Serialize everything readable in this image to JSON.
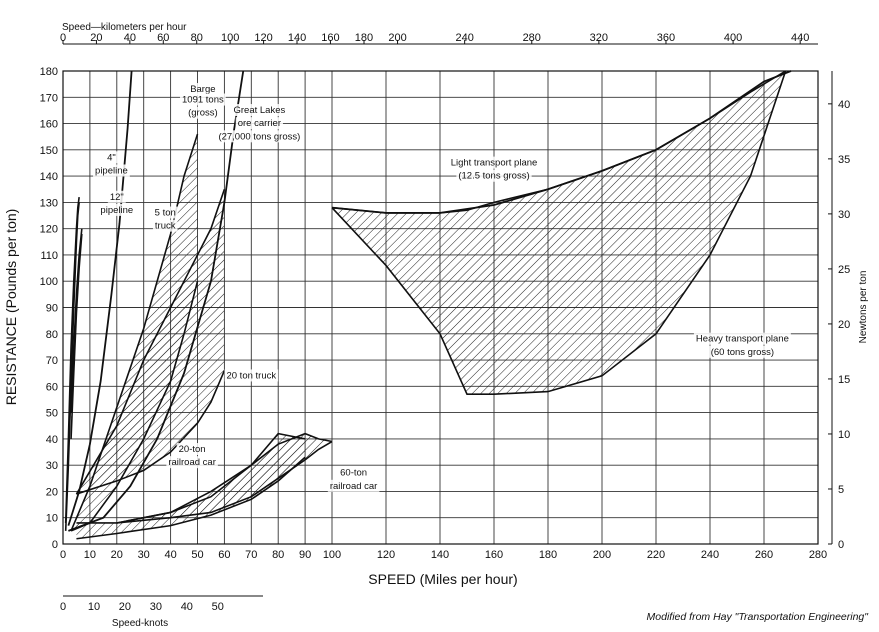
{
  "chart_data": {
    "type": "area",
    "xlabel": "SPEED  (Miles per hour)",
    "ylabel": "RESISTANCE  (Pounds per ton)",
    "xlim": [
      0,
      280
    ],
    "ylim": [
      0,
      180
    ],
    "x_ticks": [
      0,
      10,
      20,
      30,
      40,
      50,
      60,
      70,
      80,
      90,
      100,
      120,
      140,
      160,
      180,
      200,
      220,
      240,
      260,
      280
    ],
    "y_ticks": [
      0,
      10,
      20,
      30,
      40,
      50,
      60,
      70,
      80,
      90,
      100,
      110,
      120,
      130,
      140,
      150,
      160,
      170,
      180
    ],
    "grid": true,
    "top_axis": {
      "label": "Speed—kilometers per hour",
      "ticks": [
        0,
        20,
        40,
        60,
        80,
        100,
        120,
        140,
        160,
        180,
        200,
        240,
        280,
        320,
        360,
        400,
        440
      ]
    },
    "right_axis": {
      "label": "Newtons per ton",
      "ticks": [
        0,
        5,
        10,
        15,
        20,
        25,
        30,
        35,
        40
      ]
    },
    "knots_axis": {
      "label": "Speed-knots",
      "ticks": [
        0,
        10,
        20,
        30,
        40,
        50
      ]
    },
    "series": [
      {
        "name": "4\" pipeline",
        "kind": "band",
        "x": [
          1,
          2,
          3,
          4,
          5,
          5.5,
          6
        ],
        "y_low": [
          5,
          30,
          60,
          90,
          115,
          125,
          130
        ],
        "y_high": [
          8,
          40,
          75,
          100,
          120,
          128,
          132
        ]
      },
      {
        "name": "12\" pipeline",
        "kind": "band",
        "x": [
          3,
          4,
          5,
          6,
          7
        ],
        "y_low": [
          40,
          65,
          88,
          105,
          118
        ],
        "y_high": [
          50,
          75,
          95,
          110,
          120
        ]
      },
      {
        "name": "Barge 1091 tons (gross)",
        "kind": "line",
        "x": [
          2,
          6,
          10,
          14,
          18,
          21,
          24,
          25.5
        ],
        "y": [
          7,
          20,
          38,
          62,
          95,
          122,
          158,
          180
        ]
      },
      {
        "name": "Great Lakes ore carrier (27,000 tons gross)",
        "kind": "line",
        "x": [
          2,
          15,
          25,
          35,
          45,
          55,
          60,
          63.5,
          67
        ],
        "y": [
          5,
          10,
          22,
          40,
          65,
          100,
          130,
          157,
          180
        ]
      },
      {
        "name": "5 ton truck",
        "kind": "band",
        "x": [
          3,
          10,
          20,
          30,
          40,
          45,
          50
        ],
        "y_low": [
          5,
          8,
          22,
          40,
          62,
          80,
          100
        ],
        "y_high": [
          5,
          22,
          52,
          82,
          118,
          140,
          156
        ]
      },
      {
        "name": "20 ton truck",
        "kind": "band",
        "x": [
          5,
          20,
          30,
          40,
          50,
          55,
          60
        ],
        "y_low": [
          19,
          24,
          28,
          35,
          46,
          54,
          66
        ],
        "y_high": [
          19,
          45,
          70,
          90,
          110,
          120,
          135
        ]
      },
      {
        "name": "20-ton railroad car",
        "kind": "band",
        "x": [
          5,
          20,
          40,
          55,
          70,
          80,
          90
        ],
        "y_low": [
          2,
          4,
          7,
          11,
          17,
          24,
          33
        ],
        "y_high": [
          8,
          8,
          12,
          18,
          30,
          42,
          40
        ]
      },
      {
        "name": "60-ton railroad car",
        "kind": "band",
        "x": [
          20,
          40,
          55,
          70,
          80,
          90,
          95,
          100
        ],
        "y_low": [
          8,
          10,
          12,
          18,
          25,
          32,
          36,
          39
        ],
        "y_high": [
          8,
          12,
          20,
          30,
          38,
          42,
          40,
          39
        ]
      },
      {
        "name": "Light transport plane (12.5 tons gross)",
        "kind": "line",
        "x": [
          100,
          120,
          140,
          160,
          180,
          200,
          220,
          240,
          260,
          270
        ],
        "y": [
          128,
          126,
          126,
          129,
          135,
          142,
          150,
          162,
          176,
          180
        ]
      },
      {
        "name": "Heavy transport plane (60 tons gross)",
        "kind": "band",
        "x": [
          100,
          120,
          140,
          150,
          160,
          180,
          200,
          220,
          240,
          255,
          268
        ],
        "y_low": [
          128,
          106,
          80,
          57,
          57,
          58,
          64,
          80,
          110,
          140,
          180
        ],
        "y_high": [
          128,
          126,
          126,
          127,
          130,
          135,
          142,
          150,
          162,
          172,
          180
        ]
      }
    ],
    "annotations": [
      {
        "text": "Barge",
        "x": 52,
        "y": 172
      },
      {
        "text": "1091 tons",
        "x": 52,
        "y": 168
      },
      {
        "text": "(gross)",
        "x": 52,
        "y": 163
      },
      {
        "text": "Great Lakes",
        "x": 73,
        "y": 164
      },
      {
        "text": "ore carrier",
        "x": 73,
        "y": 159
      },
      {
        "text": "(27,000 tons gross)",
        "x": 73,
        "y": 154
      },
      {
        "text": "4\"",
        "x": 18,
        "y": 146
      },
      {
        "text": "pipeline",
        "x": 18,
        "y": 141
      },
      {
        "text": "12\"",
        "x": 20,
        "y": 131
      },
      {
        "text": "pipeline",
        "x": 20,
        "y": 126
      },
      {
        "text": "5 ton",
        "x": 38,
        "y": 125
      },
      {
        "text": "truck",
        "x": 38,
        "y": 120
      },
      {
        "text": "20 ton truck",
        "x": 70,
        "y": 63
      },
      {
        "text": "20-ton",
        "x": 48,
        "y": 35
      },
      {
        "text": "railroad car",
        "x": 48,
        "y": 30
      },
      {
        "text": "60-ton",
        "x": 108,
        "y": 26
      },
      {
        "text": "railroad car",
        "x": 108,
        "y": 21
      },
      {
        "text": "Light transport plane",
        "x": 160,
        "y": 144
      },
      {
        "text": "(12.5 tons gross)",
        "x": 160,
        "y": 139
      },
      {
        "text": "Heavy transport plane",
        "x": 252,
        "y": 77
      },
      {
        "text": "(60 tons gross)",
        "x": 252,
        "y": 72
      }
    ]
  },
  "credit": "Modified from Hay \"Transportation Engineering\""
}
